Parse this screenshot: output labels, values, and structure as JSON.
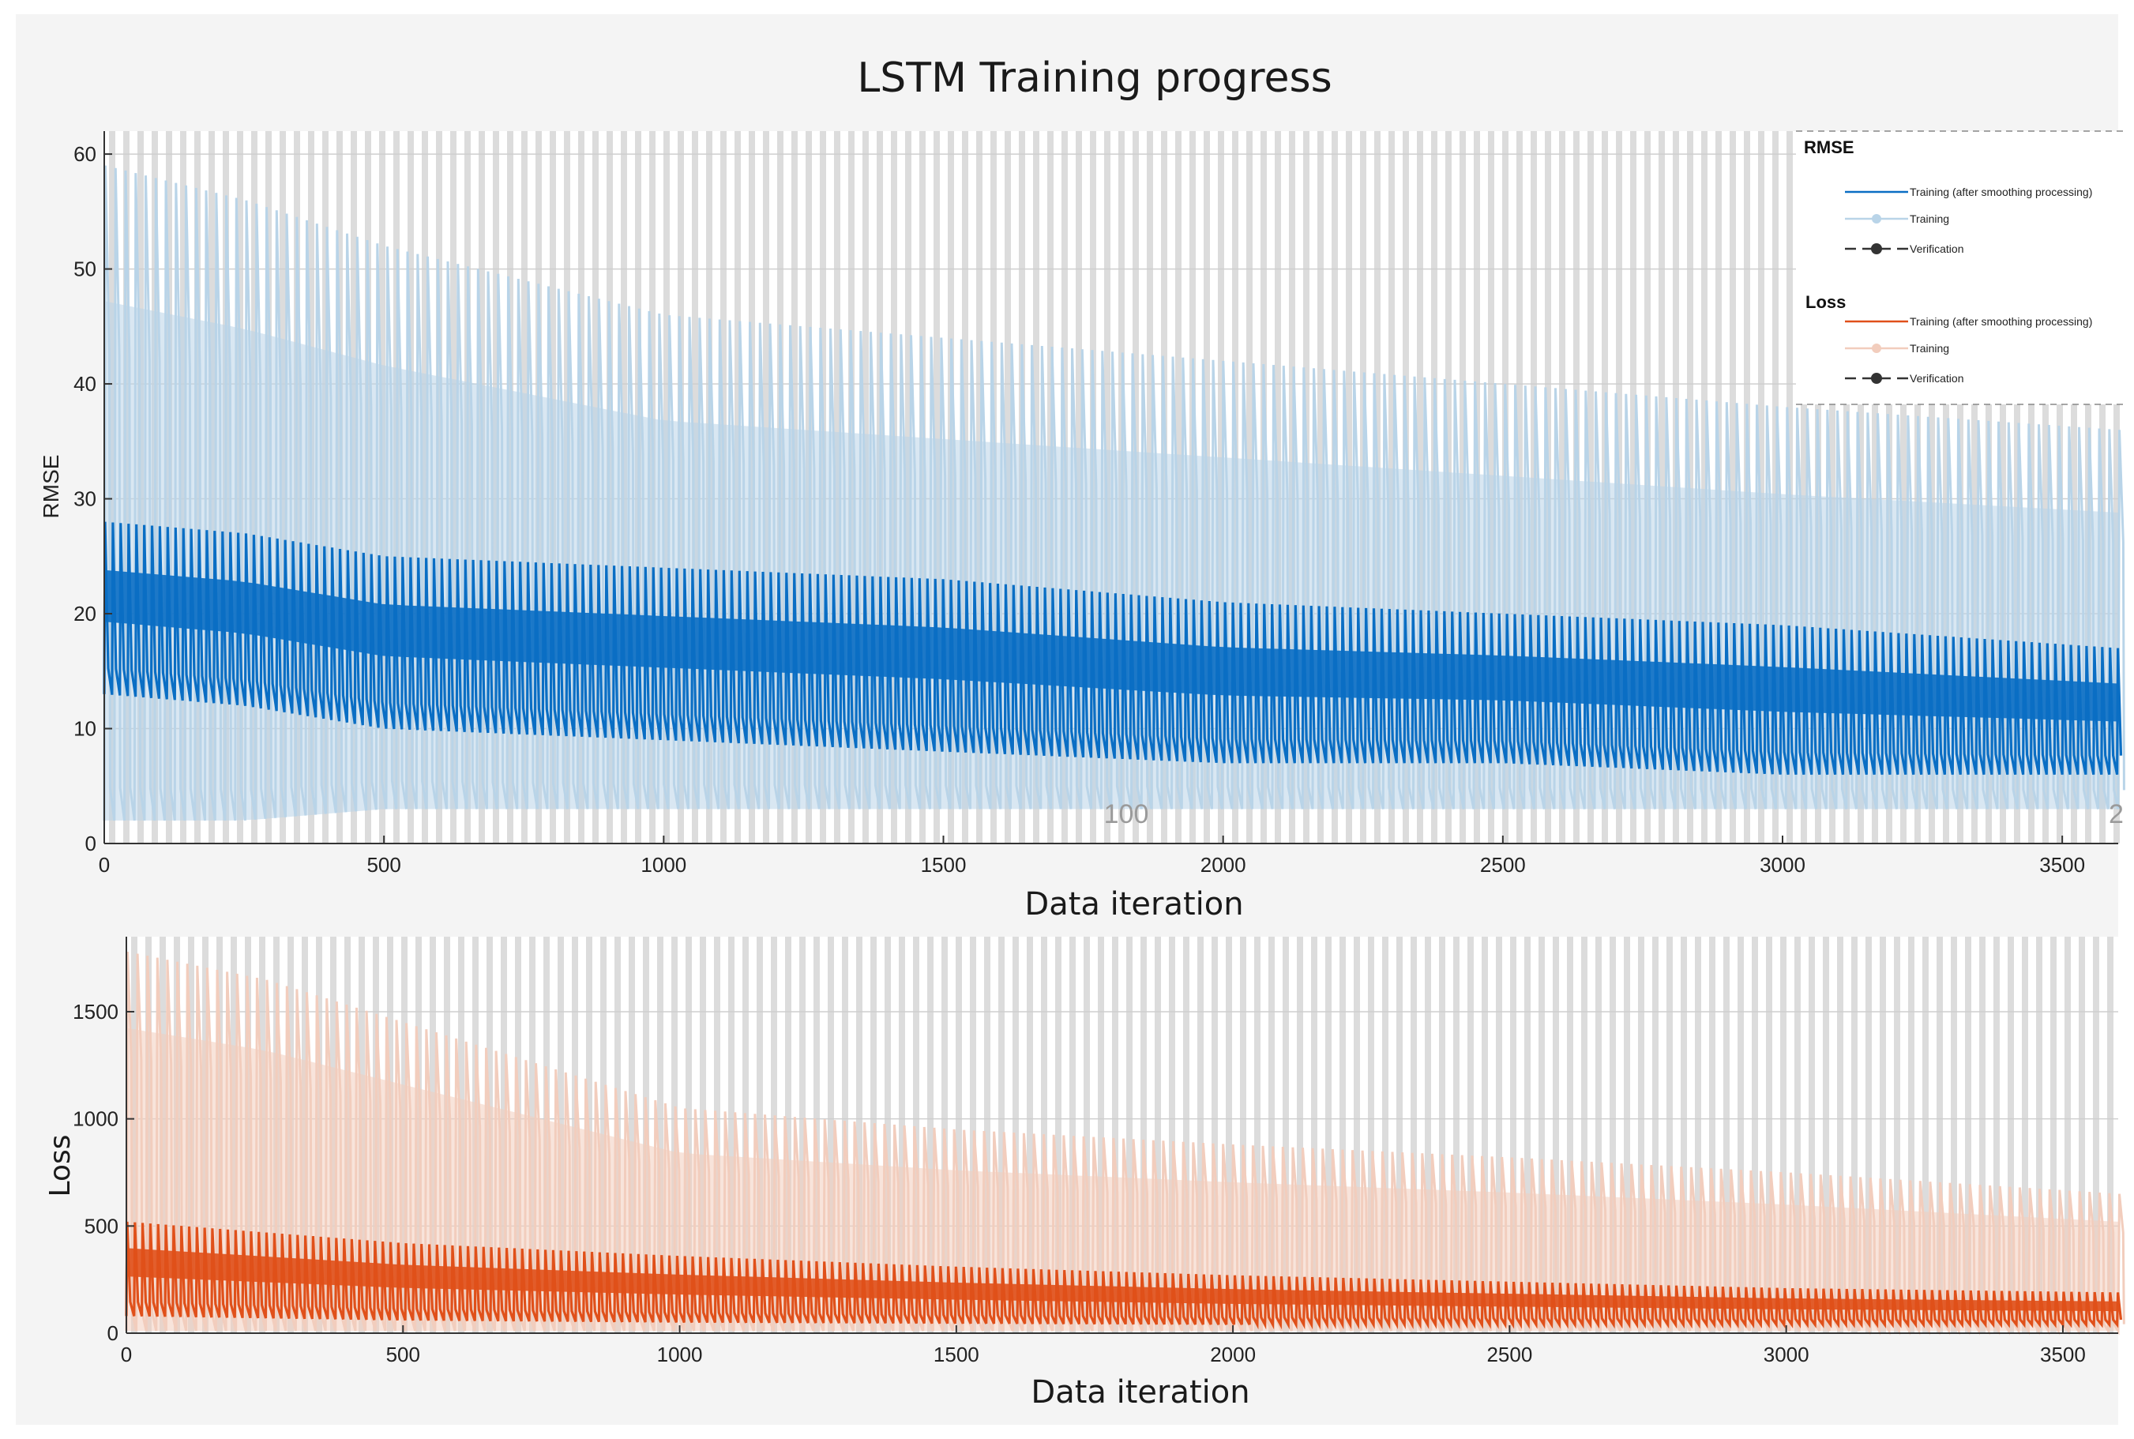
{
  "title": "LSTM Training progress",
  "colors": {
    "rmse_smooth": "#0a6ec4",
    "rmse_raw": "#b9d4e8",
    "loss_smooth": "#e0501a",
    "loss_raw": "#f2cdbd",
    "stripe": "#dcdcdc",
    "validation": "#333333"
  },
  "chart_data": [
    {
      "type": "line",
      "name": "rmse",
      "ylabel": "RMSE",
      "xlabel": "Data iteration",
      "xlim": [
        0,
        3600
      ],
      "ylim": [
        0,
        62
      ],
      "xticks": [
        0,
        500,
        1000,
        1500,
        2000,
        2500,
        3000,
        3500
      ],
      "yticks": [
        0,
        10,
        20,
        30,
        40,
        50,
        60
      ],
      "xtick_labels": [
        "0",
        "500",
        "1000",
        "1500",
        "2000",
        "2500",
        "3000",
        "3500"
      ],
      "ytick_labels": [
        "0",
        "10",
        "20",
        "30",
        "40",
        "50",
        "60"
      ],
      "grid": true,
      "epoch_annotations": [
        "100",
        "2"
      ],
      "series": [
        {
          "name": "Training (after smoothing processing)",
          "style": "smooth",
          "x": [
            0,
            250,
            500,
            1000,
            1500,
            2000,
            2500,
            3000,
            3600
          ],
          "upper": [
            28,
            27,
            25,
            24,
            23,
            21,
            20,
            19,
            17
          ],
          "lower": [
            13,
            12,
            10,
            9,
            8,
            7,
            7,
            6,
            6
          ]
        },
        {
          "name": "Training",
          "style": "raw",
          "x": [
            0,
            250,
            500,
            1000,
            1500,
            2000,
            2500,
            3000,
            3600
          ],
          "upper": [
            59,
            56,
            52,
            46,
            44,
            42,
            40,
            38,
            36
          ],
          "lower": [
            2,
            2,
            3,
            3,
            3,
            3,
            3,
            3,
            3
          ]
        },
        {
          "name": "Verification",
          "style": "validation",
          "x": [],
          "y": []
        }
      ]
    },
    {
      "type": "line",
      "name": "loss",
      "ylabel": "Loss",
      "xlabel": "Data iteration",
      "xlim": [
        0,
        3600
      ],
      "ylim": [
        0,
        1850
      ],
      "xticks": [
        0,
        500,
        1000,
        1500,
        2000,
        2500,
        3000,
        3500
      ],
      "yticks": [
        0,
        500,
        1000,
        1500
      ],
      "xtick_labels": [
        "0",
        "500",
        "1000",
        "1500",
        "2000",
        "2500",
        "3000",
        "3500"
      ],
      "ytick_labels": [
        "0",
        "500",
        "1000",
        "1500"
      ],
      "grid": true,
      "series": [
        {
          "name": "Training (after smoothing processing)",
          "style": "smooth",
          "x": [
            0,
            250,
            500,
            1000,
            1500,
            2000,
            2500,
            3000,
            3600
          ],
          "upper": [
            520,
            470,
            420,
            360,
            310,
            270,
            240,
            210,
            190
          ],
          "lower": [
            80,
            70,
            60,
            50,
            45,
            40,
            40,
            40,
            40
          ]
        },
        {
          "name": "Training",
          "style": "raw",
          "x": [
            0,
            250,
            500,
            1000,
            1500,
            2000,
            2500,
            3000,
            3600
          ],
          "upper": [
            1780,
            1650,
            1450,
            1050,
            950,
            880,
            820,
            750,
            650
          ],
          "lower": [
            10,
            10,
            10,
            10,
            10,
            10,
            10,
            10,
            10
          ]
        },
        {
          "name": "Verification",
          "style": "validation",
          "x": [],
          "y": []
        }
      ]
    }
  ],
  "legend": {
    "rmse_heading": "RMSE",
    "loss_heading": "Loss",
    "items_rmse": [
      "Training (after smoothing processing)",
      "Training",
      "Verification"
    ],
    "items_loss": [
      "Training (after smoothing processing)",
      "Training",
      "Verification"
    ]
  }
}
